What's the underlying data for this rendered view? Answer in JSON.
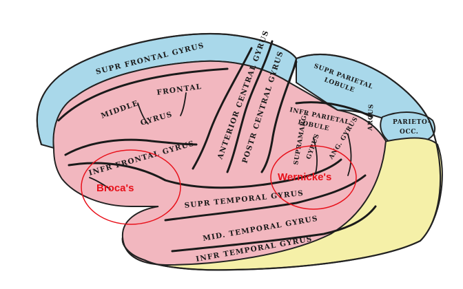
{
  "diagram": {
    "colors": {
      "frontal_blue": "#a9d8ea",
      "frontal_pink": "#f2b7bf",
      "temporal_yellow": "#f5f0a8",
      "parietal_blue": "#a9d8ea",
      "highlight_red": "#e8101a",
      "outline": "#222222"
    },
    "labels": {
      "supr_frontal": "SUPR FRONTAL GYRUS",
      "middle_frontal_a": "MIDDLE",
      "middle_frontal_b": "FRONTAL",
      "middle_frontal_c": "GYRUS",
      "infr_frontal": "INFR FRONTAL GYRUS",
      "anterior_central": "ANTERIOR CENTRAL GYRUS",
      "postr_central": "POSTR CENTRAL GYRUS",
      "supr_parietal_a": "SUPR PARIETAL",
      "supr_parietal_b": "LOBULE",
      "infr_parietal_a": "INFR PARIETAL",
      "infr_parietal_b": "LOBULE",
      "supramarg": "SUPRAMARG.",
      "gyrus_small": "GYRUS",
      "ang_gyrus": "ANG. GYRUS",
      "arcus": "ARCUS",
      "parieto_occ_a": "PARIETO-",
      "parieto_occ_b": "OCC.",
      "supr_temporal": "SUPR TEMPORAL GYRUS",
      "mid_temporal": "MID. TEMPORAL GYRUS",
      "infr_temporal": "INFR TEMPORAL GYRUS"
    },
    "highlights": {
      "broca": "Broca's",
      "wernicke": "Wernicke's"
    }
  }
}
